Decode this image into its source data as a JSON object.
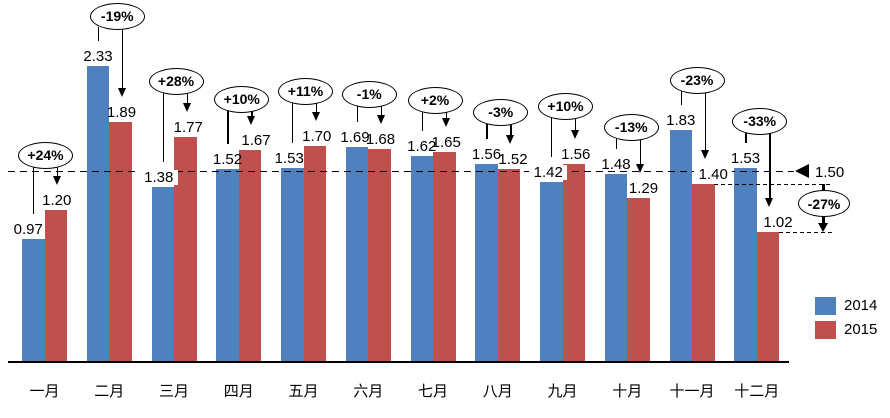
{
  "chart_data": {
    "type": "bar",
    "title": "",
    "categories": [
      "一月",
      "二月",
      "三月",
      "四月",
      "五月",
      "六月",
      "七月",
      "八月",
      "九月",
      "十月",
      "十一月",
      "十二月"
    ],
    "series": [
      {
        "name": "2014",
        "color": "#4E81BD",
        "values": [
          0.97,
          2.33,
          1.38,
          1.52,
          1.53,
          1.69,
          1.62,
          1.56,
          1.42,
          1.48,
          1.83,
          1.53
        ]
      },
      {
        "name": "2015",
        "color": "#C0504D",
        "values": [
          1.2,
          1.89,
          1.77,
          1.67,
          1.7,
          1.68,
          1.65,
          1.52,
          1.56,
          1.29,
          1.4,
          1.02
        ]
      }
    ],
    "pct_change_labels": [
      "+24%",
      "-19%",
      "+28%",
      "+10%",
      "+11%",
      "-1%",
      "+2%",
      "-3%",
      "+10%",
      "-13%",
      "-23%",
      "-33%"
    ],
    "reference_line": {
      "value": 1.5,
      "label": "1.50"
    },
    "drop_annotation": {
      "label": "-27%",
      "from_value": 1.4,
      "to_value": 1.02
    },
    "value_label_decimals": 2,
    "ylim": [
      0,
      2.5
    ],
    "grid": false,
    "legend_position": "bottom-right",
    "colors": {
      "annotation_stroke": "#000000",
      "annotation_fill": "#FFFFFF",
      "axis": "#000000"
    }
  }
}
